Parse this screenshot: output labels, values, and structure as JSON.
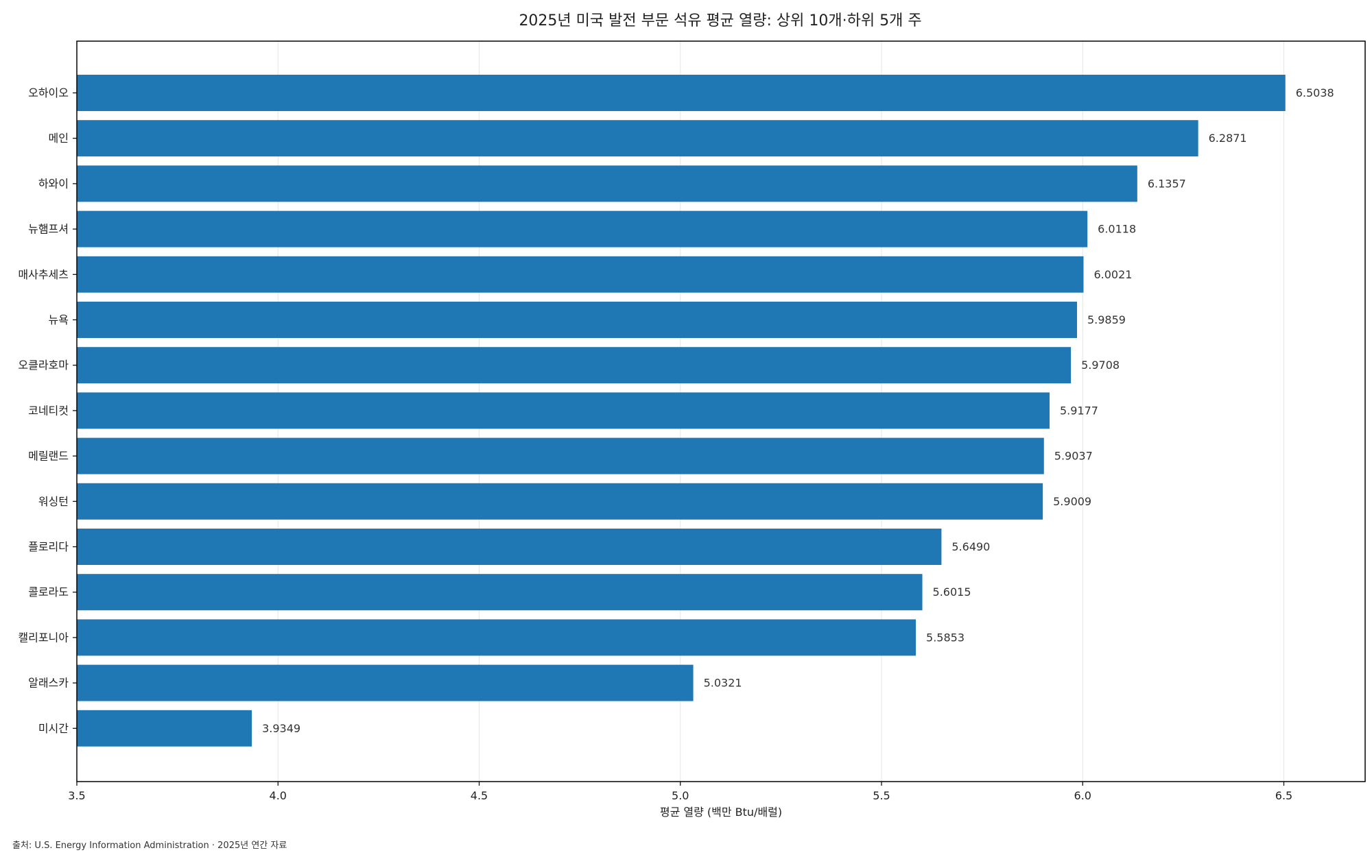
{
  "chart_data": {
    "type": "bar",
    "orientation": "horizontal",
    "title": "2025년 미국 발전 부문 석유 평균 열량: 상위 10개·하위 5개 주",
    "xlabel": "평균 열량 (백만 Btu/배럴)",
    "ylabel": "",
    "xlim": [
      3.5,
      6.7
    ],
    "xticks": [
      "3.5",
      "4.0",
      "4.5",
      "5.0",
      "5.5",
      "6.0",
      "6.5"
    ],
    "grid": "vertical",
    "bar_color": "#1f77b4",
    "categories": [
      "오하이오",
      "메인",
      "하와이",
      "뉴햄프셔",
      "매사추세츠",
      "뉴욕",
      "오클라호마",
      "코네티컷",
      "메릴랜드",
      "워싱턴",
      "플로리다",
      "콜로라도",
      "캘리포니아",
      "알래스카",
      "미시간"
    ],
    "values": [
      6.5038,
      6.2871,
      6.1357,
      6.0118,
      6.0021,
      5.9859,
      5.9708,
      5.9177,
      5.9037,
      5.9009,
      5.649,
      5.6015,
      5.5853,
      5.0321,
      3.9349
    ],
    "value_labels": [
      "6.5038",
      "6.2871",
      "6.1357",
      "6.0118",
      "6.0021",
      "5.9859",
      "5.9708",
      "5.9177",
      "5.9037",
      "5.9009",
      "5.6490",
      "5.6015",
      "5.5853",
      "5.0321",
      "3.9349"
    ]
  },
  "source_note": "출처: U.S. Energy Information Administration · 2025년 연간 자료"
}
